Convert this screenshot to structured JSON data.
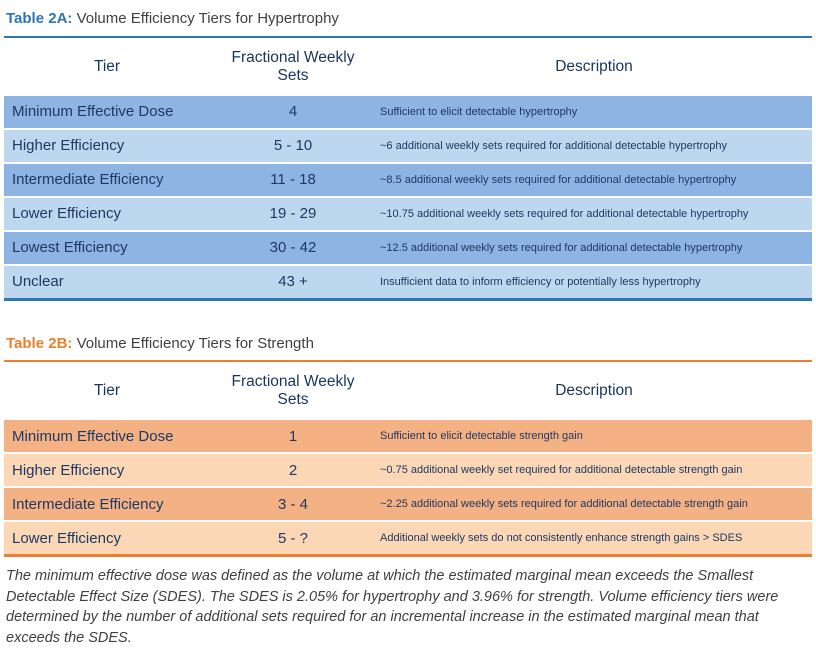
{
  "colors": {
    "blue_accent": "#2E75B6",
    "blue_title": "#2E74B5",
    "blue_row_dark": "#8DB4E2",
    "blue_row_light": "#BDD7EE",
    "orange_accent": "#ED7D31",
    "orange_title": "#E8812E",
    "orange_row_dark": "#F4B183",
    "orange_row_light": "#FBD7B5",
    "table_text": "#1F3864",
    "body_text": "#404040"
  },
  "table2a": {
    "title_label": "Table 2A:",
    "title_text": " Volume Efficiency Tiers for Hypertrophy",
    "columns": {
      "tier": "Tier",
      "sets": "Fractional Weekly Sets",
      "description": "Description"
    },
    "rows": [
      {
        "tier": "Minimum Effective Dose",
        "sets": "4",
        "description": "Sufficient to elicit detectable hypertrophy"
      },
      {
        "tier": "Higher Efficiency",
        "sets": "5 - 10",
        "description": "~6 additional weekly sets required for additional detectable hypertrophy"
      },
      {
        "tier": "Intermediate Efficiency",
        "sets": "11 - 18",
        "description": "~8.5 additional weekly sets required for additional detectable hypertrophy"
      },
      {
        "tier": "Lower Efficiency",
        "sets": "19 - 29",
        "description": "~10.75 additional weekly sets required for additional detectable hypertrophy"
      },
      {
        "tier": "Lowest Efficiency",
        "sets": "30 - 42",
        "description": "~12.5 additional weekly sets required for additional detectable hypertrophy"
      },
      {
        "tier": "Unclear",
        "sets": "43 +",
        "description": "Insufficient data to inform efficiency or potentially less hypertrophy"
      }
    ]
  },
  "table2b": {
    "title_label": "Table 2B:",
    "title_text": " Volume Efficiency Tiers for Strength",
    "columns": {
      "tier": "Tier",
      "sets": "Fractional Weekly Sets",
      "description": "Description"
    },
    "rows": [
      {
        "tier": "Minimum Effective Dose",
        "sets": "1",
        "description": "Sufficient to elicit detectable strength gain"
      },
      {
        "tier": "Higher Efficiency",
        "sets": "2",
        "description": "~0.75 additional weekly set required for additional detectable strength gain"
      },
      {
        "tier": "Intermediate Efficiency",
        "sets": "3 - 4",
        "description": "~2.25 additional weekly sets required for additional detectable strength gain"
      },
      {
        "tier": "Lower Efficiency",
        "sets": "5 - ?",
        "description": "Additional weekly sets do not consistently enhance strength gains > SDES"
      }
    ]
  },
  "footnote": "The minimum effective dose was defined as the volume at which the estimated marginal mean exceeds the Smallest Detectable Effect Size (SDES). The SDES is 2.05% for hypertrophy and 3.96% for strength. Volume efficiency tiers were determined by the number of additional sets required for an incremental increase in the estimated marginal mean that exceeds the SDES."
}
